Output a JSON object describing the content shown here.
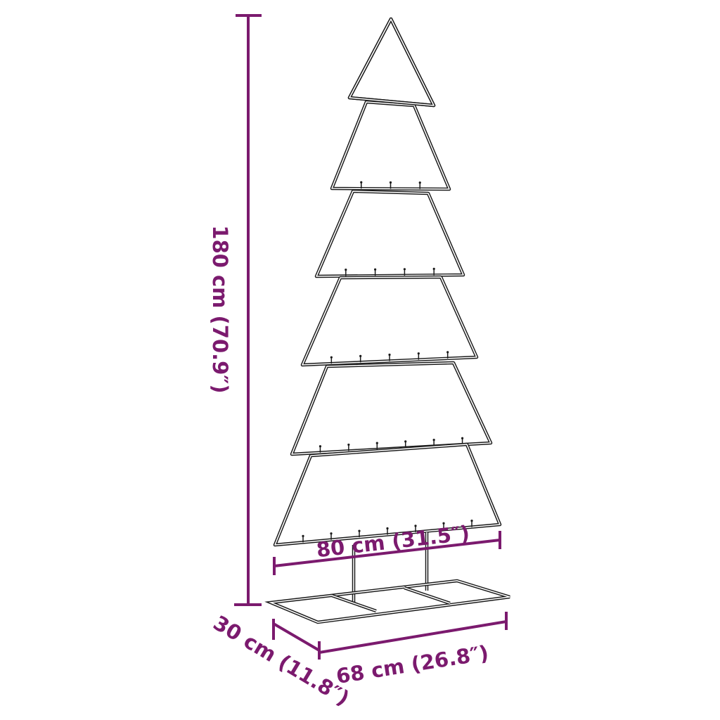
{
  "colors": {
    "dimension": "#7b1a6e",
    "outline": "#1a1a1a"
  },
  "dimensions": {
    "height": "180 cm (70.9″)",
    "tree_width": "80 cm (31.5″)",
    "base_length": "68 cm (26.8″)",
    "base_depth": "30 cm (11.8″)"
  }
}
